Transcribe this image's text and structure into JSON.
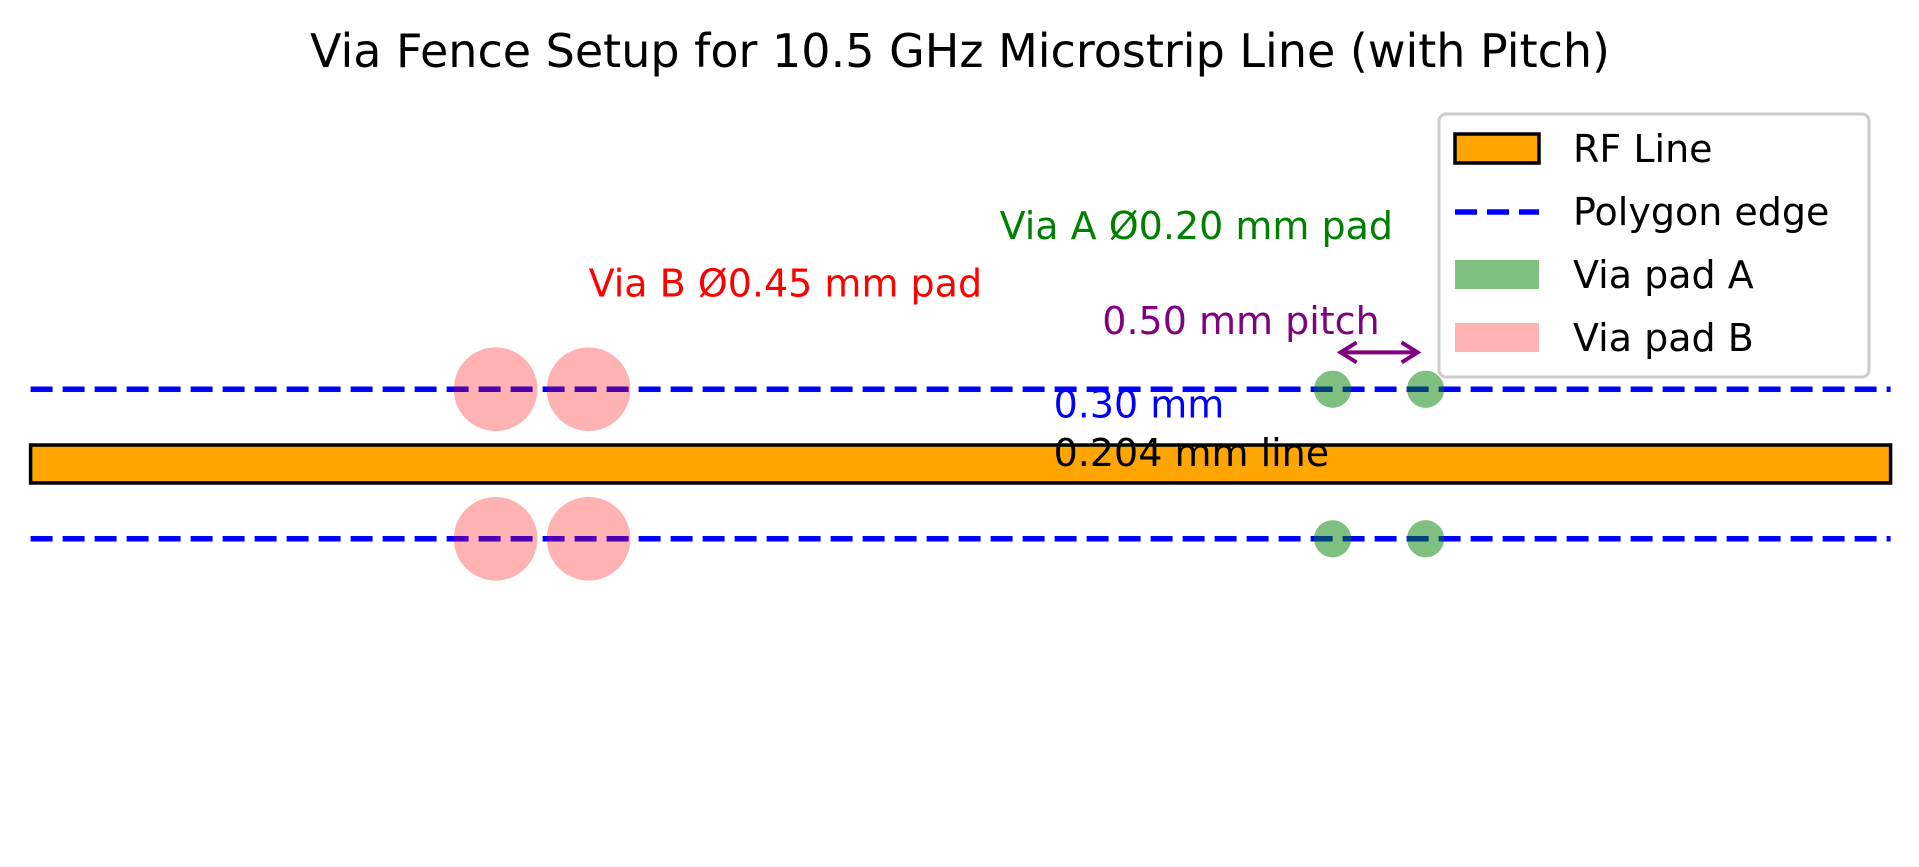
{
  "title": "Via Fence Setup for 10.5 GHz Microstrip Line (with Pitch)",
  "diagram": {
    "units": "mm",
    "rf_line": {
      "x_start": 0,
      "x_end": 10,
      "width": 0.204,
      "color": "#FFA500",
      "edge_color": "#000000"
    },
    "polygon_edges": {
      "y": [
        0.402,
        -0.402
      ],
      "x_start": 0,
      "x_end": 10,
      "color": "#0000FF",
      "style": "dashed"
    },
    "via_pads_a": {
      "diameter": 0.2,
      "x": [
        7.0,
        7.5
      ],
      "y": [
        0.402,
        -0.402
      ],
      "color": "#008000",
      "alpha": 0.5
    },
    "via_pads_b": {
      "diameter": 0.45,
      "x": [
        2.5,
        3.0
      ],
      "y": [
        0.402,
        -0.402
      ],
      "color": "#FF0000",
      "alpha": 0.3
    },
    "pitch_arrow": {
      "x_start": 7.0,
      "x_end": 7.5,
      "y": 0.6,
      "color": "#800080"
    },
    "annotations": [
      {
        "id": "via-b-label",
        "text": "Via B Ø0.45 mm pad",
        "x": 3.0,
        "y": 0.9,
        "color": "#FF0000"
      },
      {
        "id": "via-a-label",
        "text": "Via A Ø0.20 mm pad",
        "x": 7.0,
        "y": 0.8,
        "color": "#008000"
      },
      {
        "id": "pitch-label",
        "text": "0.50 mm pitch",
        "x": 6.45,
        "y": 0.7,
        "color": "#800080"
      },
      {
        "id": "gap-label",
        "text": "0.30 mm",
        "x": 5.5,
        "y": 0.25,
        "color": "#0000FF"
      },
      {
        "id": "line-width-label",
        "text": "0.204 mm line",
        "x": 5.5,
        "y": -0.01,
        "color": "#000000"
      }
    ]
  },
  "legend": {
    "placement": "upper right",
    "items": [
      {
        "label": "RF Line",
        "kind": "patch-outlined",
        "color": "#FFA500"
      },
      {
        "label": "Polygon edge",
        "kind": "dashed-line",
        "color": "#0000FF"
      },
      {
        "label": "Via pad A",
        "kind": "patch",
        "color": "#80C080"
      },
      {
        "label": "Via pad B",
        "kind": "patch",
        "color": "#FFB3B3"
      }
    ]
  }
}
